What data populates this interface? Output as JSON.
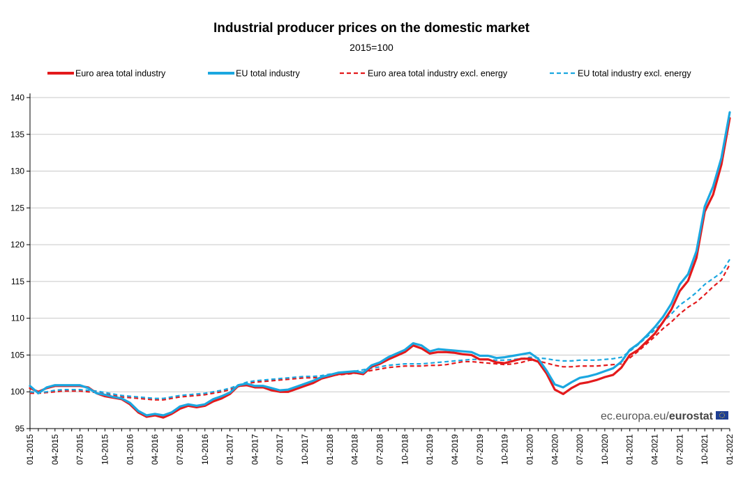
{
  "title": "Industrial producer prices on the domestic market",
  "subtitle": "2015=100",
  "watermark": {
    "text_light": "ec.europa.eu/",
    "text_bold": "eurostat"
  },
  "chart_data": {
    "type": "line",
    "title": "Industrial producer prices on the domestic market",
    "subtitle": "2015=100",
    "ylim": [
      95,
      140
    ],
    "yticks": [
      95,
      100,
      105,
      110,
      115,
      120,
      125,
      130,
      135,
      140
    ],
    "grid": true,
    "legend_position": "top",
    "x": [
      "01-2015",
      "02-2015",
      "03-2015",
      "04-2015",
      "05-2015",
      "06-2015",
      "07-2015",
      "08-2015",
      "09-2015",
      "10-2015",
      "11-2015",
      "12-2015",
      "01-2016",
      "02-2016",
      "03-2016",
      "04-2016",
      "05-2016",
      "06-2016",
      "07-2016",
      "08-2016",
      "09-2016",
      "10-2016",
      "11-2016",
      "12-2016",
      "01-2017",
      "02-2017",
      "03-2017",
      "04-2017",
      "05-2017",
      "06-2017",
      "07-2017",
      "08-2017",
      "09-2017",
      "10-2017",
      "11-2017",
      "12-2017",
      "01-2018",
      "02-2018",
      "03-2018",
      "04-2018",
      "05-2018",
      "06-2018",
      "07-2018",
      "08-2018",
      "09-2018",
      "10-2018",
      "11-2018",
      "12-2018",
      "01-2019",
      "02-2019",
      "03-2019",
      "04-2019",
      "05-2019",
      "06-2019",
      "07-2019",
      "08-2019",
      "09-2019",
      "10-2019",
      "11-2019",
      "12-2019",
      "01-2020",
      "02-2020",
      "03-2020",
      "04-2020",
      "05-2020",
      "06-2020",
      "07-2020",
      "08-2020",
      "09-2020",
      "10-2020",
      "11-2020",
      "12-2020",
      "01-2021",
      "02-2021",
      "03-2021",
      "04-2021",
      "05-2021",
      "06-2021",
      "07-2021",
      "08-2021",
      "09-2021",
      "10-2021",
      "11-2021",
      "12-2021",
      "01-2022"
    ],
    "xtick_labels": [
      "01-2015",
      "04-2015",
      "07-2015",
      "10-2015",
      "01-2016",
      "04-2016",
      "07-2016",
      "10-2016",
      "01-2017",
      "04-2017",
      "07-2017",
      "10-2017",
      "01-2018",
      "04-2018",
      "07-2018",
      "10-2018",
      "01-2019",
      "04-2019",
      "07-2019",
      "10-2019",
      "01-2020",
      "04-2020",
      "07-2020",
      "10-2020",
      "01-2021",
      "04-2021",
      "07-2021",
      "10-2021",
      "01-2022"
    ],
    "series": [
      {
        "name": "Euro area total industry",
        "color": "#e31a1c",
        "dash": false,
        "values": [
          100.5,
          100.0,
          100.5,
          100.8,
          100.8,
          100.8,
          100.8,
          100.6,
          99.8,
          99.4,
          99.2,
          99.0,
          98.3,
          97.2,
          96.6,
          96.8,
          96.5,
          97.0,
          97.7,
          98.1,
          97.9,
          98.1,
          98.7,
          99.1,
          99.7,
          100.8,
          100.9,
          100.6,
          100.6,
          100.2,
          100.0,
          100.0,
          100.4,
          100.8,
          101.2,
          101.8,
          102.1,
          102.4,
          102.5,
          102.6,
          102.4,
          103.4,
          103.8,
          104.4,
          104.9,
          105.4,
          106.3,
          105.9,
          105.2,
          105.4,
          105.4,
          105.3,
          105.1,
          105.0,
          104.4,
          104.4,
          104.0,
          103.9,
          104.2,
          104.5,
          104.5,
          104.1,
          102.5,
          100.3,
          99.7,
          100.5,
          101.1,
          101.3,
          101.6,
          102.0,
          102.3,
          103.3,
          105.0,
          105.7,
          106.8,
          107.9,
          109.5,
          111.2,
          113.7,
          115.1,
          118.2,
          124.5,
          126.8,
          130.9,
          137.2
        ]
      },
      {
        "name": "EU total industry",
        "color": "#1ba7e0",
        "dash": false,
        "values": [
          100.8,
          99.8,
          100.6,
          100.9,
          100.9,
          100.9,
          100.9,
          100.5,
          99.8,
          99.6,
          99.3,
          99.1,
          98.5,
          97.4,
          96.8,
          97.0,
          96.8,
          97.2,
          98.0,
          98.3,
          98.1,
          98.3,
          99.0,
          99.4,
          99.9,
          100.9,
          101.1,
          100.8,
          100.8,
          100.5,
          100.2,
          100.3,
          100.7,
          101.1,
          101.5,
          102.0,
          102.3,
          102.6,
          102.7,
          102.8,
          102.6,
          103.6,
          104.0,
          104.7,
          105.2,
          105.7,
          106.6,
          106.3,
          105.5,
          105.8,
          105.7,
          105.6,
          105.5,
          105.4,
          104.9,
          104.9,
          104.6,
          104.7,
          104.9,
          105.1,
          105.3,
          104.5,
          102.9,
          101.0,
          100.6,
          101.3,
          101.9,
          102.1,
          102.4,
          102.8,
          103.2,
          104.1,
          105.7,
          106.5,
          107.6,
          108.8,
          110.2,
          112.0,
          114.6,
          116.0,
          119.1,
          125.2,
          127.9,
          131.8,
          138.0
        ]
      },
      {
        "name": "Euro area total industry excl. energy",
        "color": "#e31a1c",
        "dash": true,
        "values": [
          99.8,
          99.8,
          99.9,
          100.0,
          100.1,
          100.1,
          100.1,
          100.0,
          99.9,
          99.7,
          99.5,
          99.3,
          99.2,
          99.1,
          99.0,
          98.9,
          98.9,
          99.1,
          99.3,
          99.4,
          99.5,
          99.6,
          99.8,
          100.0,
          100.3,
          100.7,
          101.1,
          101.3,
          101.4,
          101.5,
          101.6,
          101.7,
          101.8,
          101.9,
          101.9,
          102.0,
          102.2,
          102.3,
          102.4,
          102.5,
          102.7,
          102.9,
          103.1,
          103.3,
          103.4,
          103.5,
          103.5,
          103.5,
          103.6,
          103.6,
          103.7,
          103.9,
          104.1,
          104.1,
          104.0,
          103.9,
          103.8,
          103.7,
          103.8,
          104.0,
          104.3,
          104.2,
          103.9,
          103.6,
          103.4,
          103.4,
          103.5,
          103.5,
          103.5,
          103.6,
          103.7,
          103.8,
          104.6,
          105.5,
          106.5,
          107.5,
          108.6,
          109.5,
          110.6,
          111.5,
          112.2,
          113.2,
          114.3,
          115.2,
          117.3
        ]
      },
      {
        "name": "EU total industry excl. energy",
        "color": "#1ba7e0",
        "dash": true,
        "values": [
          100.0,
          99.9,
          100.0,
          100.2,
          100.3,
          100.3,
          100.3,
          100.2,
          100.1,
          99.9,
          99.7,
          99.5,
          99.4,
          99.3,
          99.2,
          99.1,
          99.1,
          99.3,
          99.5,
          99.6,
          99.7,
          99.8,
          100.0,
          100.2,
          100.5,
          100.9,
          101.3,
          101.5,
          101.6,
          101.7,
          101.8,
          101.9,
          102.0,
          102.1,
          102.1,
          102.2,
          102.4,
          102.5,
          102.6,
          102.8,
          103.0,
          103.2,
          103.4,
          103.6,
          103.7,
          103.8,
          103.8,
          103.8,
          103.9,
          104.0,
          104.1,
          104.2,
          104.3,
          104.4,
          104.4,
          104.4,
          104.3,
          104.3,
          104.4,
          104.5,
          104.7,
          104.6,
          104.5,
          104.3,
          104.2,
          104.2,
          104.3,
          104.3,
          104.3,
          104.4,
          104.5,
          104.7,
          105.5,
          106.4,
          107.4,
          108.4,
          109.5,
          110.6,
          111.8,
          112.6,
          113.5,
          114.6,
          115.4,
          116.2,
          118.0
        ]
      }
    ]
  }
}
